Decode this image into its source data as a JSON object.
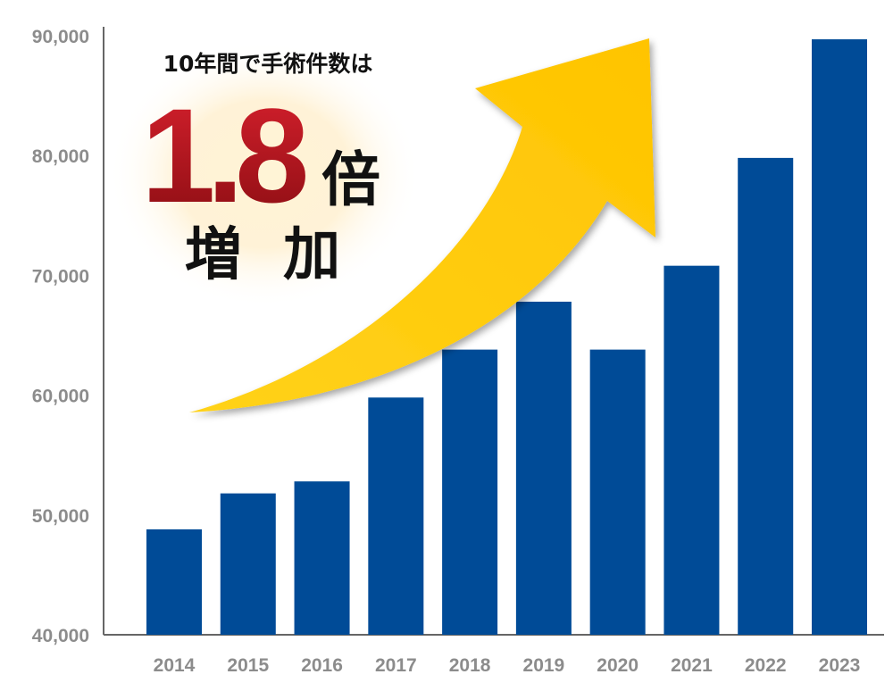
{
  "chart_data": {
    "type": "bar",
    "categories": [
      "2014",
      "2015",
      "2016",
      "2017",
      "2018",
      "2019",
      "2020",
      "2021",
      "2022",
      "2023"
    ],
    "values": [
      48800,
      51800,
      52800,
      59800,
      63800,
      67800,
      63800,
      70800,
      79800,
      89700
    ],
    "ylim": [
      40000,
      90000
    ],
    "yticks": [
      40000,
      50000,
      60000,
      70000,
      80000,
      90000
    ],
    "ytick_labels": [
      "40,000",
      "50,000",
      "60,000",
      "70,000",
      "80,000",
      "90,000"
    ],
    "bar_color": "#004b97",
    "grid": false,
    "legend": "none"
  },
  "callout": {
    "line1": "10年間で手術件数は",
    "big_number": "1.8",
    "unit": "倍",
    "line3": "増 加"
  },
  "colors": {
    "arrow": "#ffcc00",
    "big_number": "#a3101a",
    "axis": "#666666"
  }
}
